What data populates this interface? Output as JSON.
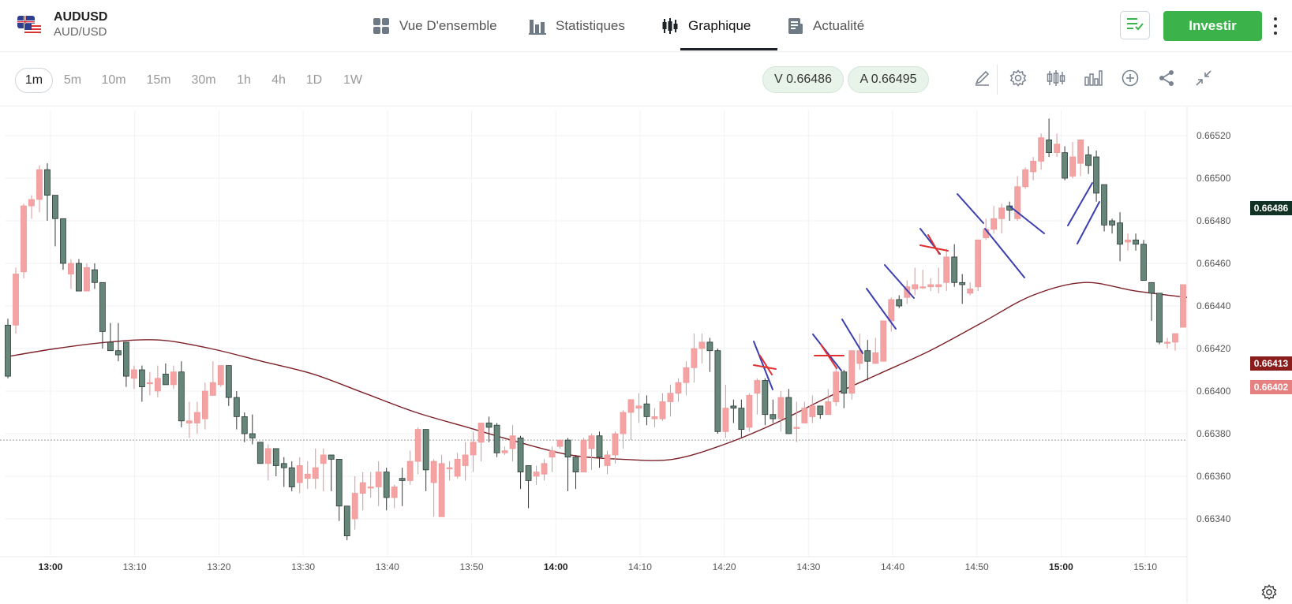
{
  "header": {
    "symbol": "AUDUSD",
    "pair": "AUD/USD",
    "tabs": [
      {
        "label": "Vue D'ensemble",
        "icon": "grid-icon",
        "active": false
      },
      {
        "label": "Statistiques",
        "icon": "bar-stats-icon",
        "active": false
      },
      {
        "label": "Graphique",
        "icon": "candlestick-icon",
        "active": true
      },
      {
        "label": "Actualité",
        "icon": "news-icon",
        "active": false
      }
    ],
    "invest_label": "Investir",
    "accent": "#3bb34a"
  },
  "toolbar": {
    "timeframes": [
      "1m",
      "5m",
      "10m",
      "15m",
      "30m",
      "1h",
      "4h",
      "1D",
      "1W"
    ],
    "active_timeframe": "1m",
    "sell_price": "V 0.66486",
    "buy_price": "A 0.66495",
    "tools": [
      "pencil-icon",
      "settings-icon",
      "candles-icon",
      "indicators-icon",
      "add-icon",
      "share-icon",
      "collapse-icon"
    ]
  },
  "chart_data": {
    "type": "candlestick",
    "x_ticks": [
      "13:00",
      "13:10",
      "13:20",
      "13:30",
      "13:40",
      "13:50",
      "14:00",
      "14:10",
      "14:20",
      "14:30",
      "14:40",
      "14:50",
      "15:00",
      "15:10"
    ],
    "y_ticks": [
      "0.66340",
      "0.66360",
      "0.66380",
      "0.66400",
      "0.66420",
      "0.66440",
      "0.66460",
      "0.66480",
      "0.66500",
      "0.66520"
    ],
    "ylim": [
      0.66326,
      0.66531
    ],
    "up_color": "#f3a3a3",
    "down_color": "#66867a",
    "ma_color": "#7d2027",
    "price_labels": [
      {
        "text": "0.66486",
        "value": 0.66486,
        "color": "#123225"
      },
      {
        "text": "0.66413",
        "value": 0.66413,
        "color": "#8b1c1c"
      },
      {
        "text": "0.66402",
        "value": 0.66402,
        "color": "#e78080"
      }
    ],
    "reference_line": 0.66377,
    "candles": [
      [
        0.66431,
        0.66407,
        0.66434,
        0.66406
      ],
      [
        0.66431,
        0.66455,
        0.66458,
        0.66427
      ],
      [
        0.66456,
        0.66487,
        0.66488,
        0.66453
      ],
      [
        0.66487,
        0.6649,
        0.66492,
        0.66481
      ],
      [
        0.6649,
        0.66504,
        0.66506,
        0.66484
      ],
      [
        0.66504,
        0.66492,
        0.66507,
        0.6648
      ],
      [
        0.66492,
        0.66481,
        0.66483,
        0.66468
      ],
      [
        0.66481,
        0.6646,
        0.66464,
        0.66457
      ],
      [
        0.66455,
        0.6646,
        0.66462,
        0.66448
      ],
      [
        0.6646,
        0.66447,
        0.66462,
        0.66447
      ],
      [
        0.66447,
        0.66458,
        0.6646,
        0.66447
      ],
      [
        0.66457,
        0.66451,
        0.6646,
        0.66448
      ],
      [
        0.66451,
        0.66428,
        0.6645,
        0.6642
      ],
      [
        0.66423,
        0.66419,
        0.66432,
        0.66419
      ],
      [
        0.66419,
        0.66417,
        0.66432,
        0.66414
      ],
      [
        0.66423,
        0.66407,
        0.66423,
        0.66402
      ],
      [
        0.66406,
        0.6641,
        0.66412,
        0.66401
      ],
      [
        0.6641,
        0.66402,
        0.66412,
        0.66395
      ],
      [
        0.66404,
        0.66404,
        0.66409,
        0.66398
      ],
      [
        0.664,
        0.66406,
        0.66412,
        0.66397
      ],
      [
        0.66408,
        0.66403,
        0.66413,
        0.66403
      ],
      [
        0.66403,
        0.66409,
        0.66412,
        0.66401
      ],
      [
        0.66409,
        0.66386,
        0.66414,
        0.66383
      ],
      [
        0.66385,
        0.66386,
        0.66395,
        0.66378
      ],
      [
        0.66385,
        0.6639,
        0.66395,
        0.6638
      ],
      [
        0.66387,
        0.664,
        0.66404,
        0.66382
      ],
      [
        0.66398,
        0.66404,
        0.66414,
        0.66398
      ],
      [
        0.66403,
        0.66412,
        0.66412,
        0.66402
      ],
      [
        0.66412,
        0.66397,
        0.66412,
        0.66393
      ],
      [
        0.66397,
        0.66388,
        0.664,
        0.66382
      ],
      [
        0.66388,
        0.6638,
        0.6639,
        0.66376
      ],
      [
        0.6638,
        0.66378,
        0.66389,
        0.66375
      ],
      [
        0.66376,
        0.66366,
        0.66376,
        0.66366
      ],
      [
        0.66366,
        0.66373,
        0.66375,
        0.66358
      ],
      [
        0.66373,
        0.66365,
        0.66372,
        0.6636
      ],
      [
        0.66366,
        0.66364,
        0.66369,
        0.66355
      ],
      [
        0.66364,
        0.66355,
        0.66367,
        0.66353
      ],
      [
        0.66357,
        0.66365,
        0.66369,
        0.66352
      ],
      [
        0.66359,
        0.66361,
        0.66367,
        0.66354
      ],
      [
        0.66359,
        0.66364,
        0.66373,
        0.66354
      ],
      [
        0.66366,
        0.6637,
        0.66373,
        0.66353
      ],
      [
        0.6637,
        0.66368,
        0.66369,
        0.66353
      ],
      [
        0.66368,
        0.66346,
        0.66368,
        0.66339
      ],
      [
        0.66346,
        0.66332,
        0.66345,
        0.6633
      ],
      [
        0.6634,
        0.66352,
        0.6636,
        0.66335
      ],
      [
        0.66352,
        0.66357,
        0.66362,
        0.66344
      ],
      [
        0.66355,
        0.66355,
        0.66362,
        0.6635
      ],
      [
        0.66355,
        0.66362,
        0.66367,
        0.66346
      ],
      [
        0.66362,
        0.6635,
        0.66364,
        0.66344
      ],
      [
        0.6635,
        0.66355,
        0.66356,
        0.66345
      ],
      [
        0.66359,
        0.66358,
        0.66364,
        0.66346
      ],
      [
        0.66358,
        0.66367,
        0.66372,
        0.66356
      ],
      [
        0.66367,
        0.66382,
        0.66383,
        0.66361
      ],
      [
        0.66382,
        0.66363,
        0.66382,
        0.66353
      ],
      [
        0.66357,
        0.66367,
        0.66368,
        0.66341
      ],
      [
        0.66341,
        0.66366,
        0.6637,
        0.66343
      ],
      [
        0.66364,
        0.66364,
        0.66367,
        0.66358
      ],
      [
        0.6636,
        0.66368,
        0.66371,
        0.66359
      ],
      [
        0.66365,
        0.6637,
        0.66376,
        0.66358
      ],
      [
        0.6637,
        0.66376,
        0.66381,
        0.66362
      ],
      [
        0.66376,
        0.66385,
        0.66385,
        0.66367
      ],
      [
        0.66385,
        0.66383,
        0.66388,
        0.66376
      ],
      [
        0.66384,
        0.66371,
        0.66385,
        0.66369
      ],
      [
        0.66371,
        0.66372,
        0.66374,
        0.6637
      ],
      [
        0.66373,
        0.66379,
        0.66384,
        0.66367
      ],
      [
        0.66378,
        0.66362,
        0.66379,
        0.66354
      ],
      [
        0.66365,
        0.66358,
        0.66365,
        0.66345
      ],
      [
        0.6636,
        0.66362,
        0.66365,
        0.66356
      ],
      [
        0.66361,
        0.66366,
        0.66368,
        0.66358
      ],
      [
        0.66369,
        0.66372,
        0.66374,
        0.66362
      ],
      [
        0.66374,
        0.66377,
        0.66377,
        0.66373
      ],
      [
        0.66377,
        0.66369,
        0.66378,
        0.66353
      ],
      [
        0.66369,
        0.66362,
        0.6637,
        0.66354
      ],
      [
        0.66362,
        0.66377,
        0.66378,
        0.66362
      ],
      [
        0.66373,
        0.66379,
        0.6638,
        0.66363
      ],
      [
        0.66379,
        0.66369,
        0.66381,
        0.66364
      ],
      [
        0.66365,
        0.6637,
        0.66372,
        0.66361
      ],
      [
        0.6637,
        0.6638,
        0.66381,
        0.66366
      ],
      [
        0.6638,
        0.6639,
        0.66391,
        0.66373
      ],
      [
        0.6639,
        0.66396,
        0.66396,
        0.66377
      ],
      [
        0.66392,
        0.66393,
        0.66399,
        0.66385
      ],
      [
        0.66394,
        0.66388,
        0.66398,
        0.66384
      ],
      [
        0.66387,
        0.66388,
        0.66392,
        0.66383
      ],
      [
        0.66387,
        0.66395,
        0.66399,
        0.66386
      ],
      [
        0.66395,
        0.66399,
        0.66403,
        0.66388
      ],
      [
        0.66399,
        0.66404,
        0.66406,
        0.66395
      ],
      [
        0.66404,
        0.66411,
        0.66414,
        0.66398
      ],
      [
        0.66411,
        0.6642,
        0.66427,
        0.66404
      ],
      [
        0.6642,
        0.66423,
        0.66427,
        0.66413
      ],
      [
        0.66423,
        0.66419,
        0.66425,
        0.66409
      ],
      [
        0.66419,
        0.66381,
        0.6642,
        0.6638
      ],
      [
        0.66381,
        0.66392,
        0.66403,
        0.66378
      ],
      [
        0.66393,
        0.66392,
        0.66396,
        0.66385
      ],
      [
        0.66392,
        0.66382,
        0.66396,
        0.66378
      ],
      [
        0.66383,
        0.66398,
        0.66399,
        0.66381
      ],
      [
        0.66399,
        0.66405,
        0.66406,
        0.66389
      ],
      [
        0.66405,
        0.66389,
        0.66406,
        0.66384
      ],
      [
        0.66389,
        0.66387,
        0.66396,
        0.66385
      ],
      [
        0.66387,
        0.66397,
        0.664,
        0.66381
      ],
      [
        0.66397,
        0.6638,
        0.66401,
        0.6638
      ],
      [
        0.66383,
        0.66383,
        0.66395,
        0.66376
      ],
      [
        0.66385,
        0.66392,
        0.66395,
        0.66389
      ],
      [
        0.66388,
        0.66393,
        0.66398,
        0.66385
      ],
      [
        0.66393,
        0.66389,
        0.66393,
        0.66387
      ],
      [
        0.66389,
        0.66395,
        0.66401,
        0.66392
      ],
      [
        0.66395,
        0.66409,
        0.66411,
        0.66393
      ],
      [
        0.66409,
        0.66399,
        0.6641,
        0.66392
      ],
      [
        0.66399,
        0.66419,
        0.66419,
        0.66396
      ],
      [
        0.66413,
        0.66419,
        0.66427,
        0.6641
      ],
      [
        0.66419,
        0.66414,
        0.66424,
        0.66405
      ],
      [
        0.66413,
        0.66418,
        0.66425,
        0.66414
      ],
      [
        0.66414,
        0.66433,
        0.66433,
        0.66414
      ],
      [
        0.66433,
        0.66443,
        0.66444,
        0.66428
      ],
      [
        0.66443,
        0.6644,
        0.66445,
        0.66439
      ],
      [
        0.66444,
        0.66449,
        0.66452,
        0.66441
      ],
      [
        0.66448,
        0.6645,
        0.66458,
        0.66445
      ],
      [
        0.66449,
        0.66449,
        0.66457,
        0.66448
      ],
      [
        0.66449,
        0.6645,
        0.66453,
        0.66447
      ],
      [
        0.66449,
        0.6645,
        0.66458,
        0.66446
      ],
      [
        0.66451,
        0.66463,
        0.66467,
        0.66447
      ],
      [
        0.66463,
        0.66451,
        0.66469,
        0.66449
      ],
      [
        0.66451,
        0.6645,
        0.66455,
        0.66441
      ],
      [
        0.66446,
        0.66448,
        0.66451,
        0.66445
      ],
      [
        0.66449,
        0.66471,
        0.66471,
        0.66447
      ],
      [
        0.66472,
        0.66476,
        0.66481,
        0.66471
      ],
      [
        0.66476,
        0.66481,
        0.66487,
        0.66474
      ],
      [
        0.66481,
        0.66486,
        0.66488,
        0.66474
      ],
      [
        0.66487,
        0.66485,
        0.66489,
        0.6648
      ],
      [
        0.66481,
        0.66496,
        0.66501,
        0.6648
      ],
      [
        0.66496,
        0.66504,
        0.66505,
        0.66495
      ],
      [
        0.66503,
        0.66508,
        0.6651,
        0.66499
      ],
      [
        0.66508,
        0.66519,
        0.66521,
        0.66504
      ],
      [
        0.66518,
        0.66512,
        0.66528,
        0.6651
      ],
      [
        0.66512,
        0.66516,
        0.66521,
        0.6651
      ],
      [
        0.66512,
        0.665,
        0.66515,
        0.66499
      ],
      [
        0.66501,
        0.6651,
        0.66517,
        0.665
      ],
      [
        0.66507,
        0.66518,
        0.66518,
        0.66501
      ],
      [
        0.66511,
        0.66506,
        0.66515,
        0.66502
      ],
      [
        0.6651,
        0.66493,
        0.66513,
        0.66489
      ],
      [
        0.66497,
        0.66478,
        0.66497,
        0.66475
      ],
      [
        0.6648,
        0.66478,
        0.66481,
        0.66474
      ],
      [
        0.66479,
        0.66469,
        0.66484,
        0.66461
      ],
      [
        0.6647,
        0.66471,
        0.66474,
        0.66466
      ],
      [
        0.66471,
        0.66469,
        0.66474,
        0.66466
      ],
      [
        0.66469,
        0.66452,
        0.66471,
        0.66452
      ],
      [
        0.66451,
        0.66446,
        0.66451,
        0.66433
      ],
      [
        0.66446,
        0.66423,
        0.66446,
        0.66422
      ],
      [
        0.66423,
        0.66423,
        0.66425,
        0.6642
      ],
      [
        0.66423,
        0.66427,
        0.66427,
        0.66419
      ],
      [
        0.6643,
        0.6645,
        0.6645,
        0.6643
      ]
    ],
    "moving_average": [
      0.66416,
      0.6642,
      0.66423,
      0.66424,
      0.6642,
      0.66414,
      0.66408,
      0.66399,
      0.6639,
      0.66383,
      0.66376,
      0.6637,
      0.66368,
      0.66368,
      0.66375,
      0.66385,
      0.66397,
      0.66408,
      0.66419,
      0.66432,
      0.66445,
      0.66451,
      0.66447,
      0.66444
    ],
    "annotations": {
      "blue_strokes": [
        [
          [
            955,
            433
          ],
          [
            979,
            494
          ]
        ],
        [
          [
            1030,
            424
          ],
          [
            1066,
            470
          ]
        ],
        [
          [
            1067,
            405
          ],
          [
            1093,
            448
          ]
        ],
        [
          [
            1098,
            366
          ],
          [
            1135,
            417
          ]
        ],
        [
          [
            1121,
            336
          ],
          [
            1158,
            378
          ]
        ],
        [
          [
            1166,
            290
          ],
          [
            1191,
            322
          ]
        ],
        [
          [
            1213,
            246
          ],
          [
            1246,
            283
          ]
        ],
        [
          [
            1248,
            290
          ],
          [
            1298,
            352
          ]
        ],
        [
          [
            1280,
            262
          ],
          [
            1323,
            296
          ]
        ],
        [
          [
            1353,
            286
          ],
          [
            1384,
            232
          ]
        ],
        [
          [
            1365,
            309
          ],
          [
            1393,
            256
          ]
        ]
      ],
      "red_crosses": [
        [
          [
            955,
            463
          ],
          [
            983,
            468
          ],
          [
            963,
            451
          ],
          [
            978,
            475
          ]
        ],
        [
          [
            1032,
            451
          ],
          [
            1069,
            451
          ],
          [
            1040,
            437
          ],
          [
            1060,
            467
          ]
        ],
        [
          [
            1166,
            311
          ],
          [
            1201,
            318
          ],
          [
            1176,
            298
          ],
          [
            1190,
            322
          ]
        ]
      ]
    }
  },
  "footer": {
    "settings_icon": "gear-icon"
  }
}
